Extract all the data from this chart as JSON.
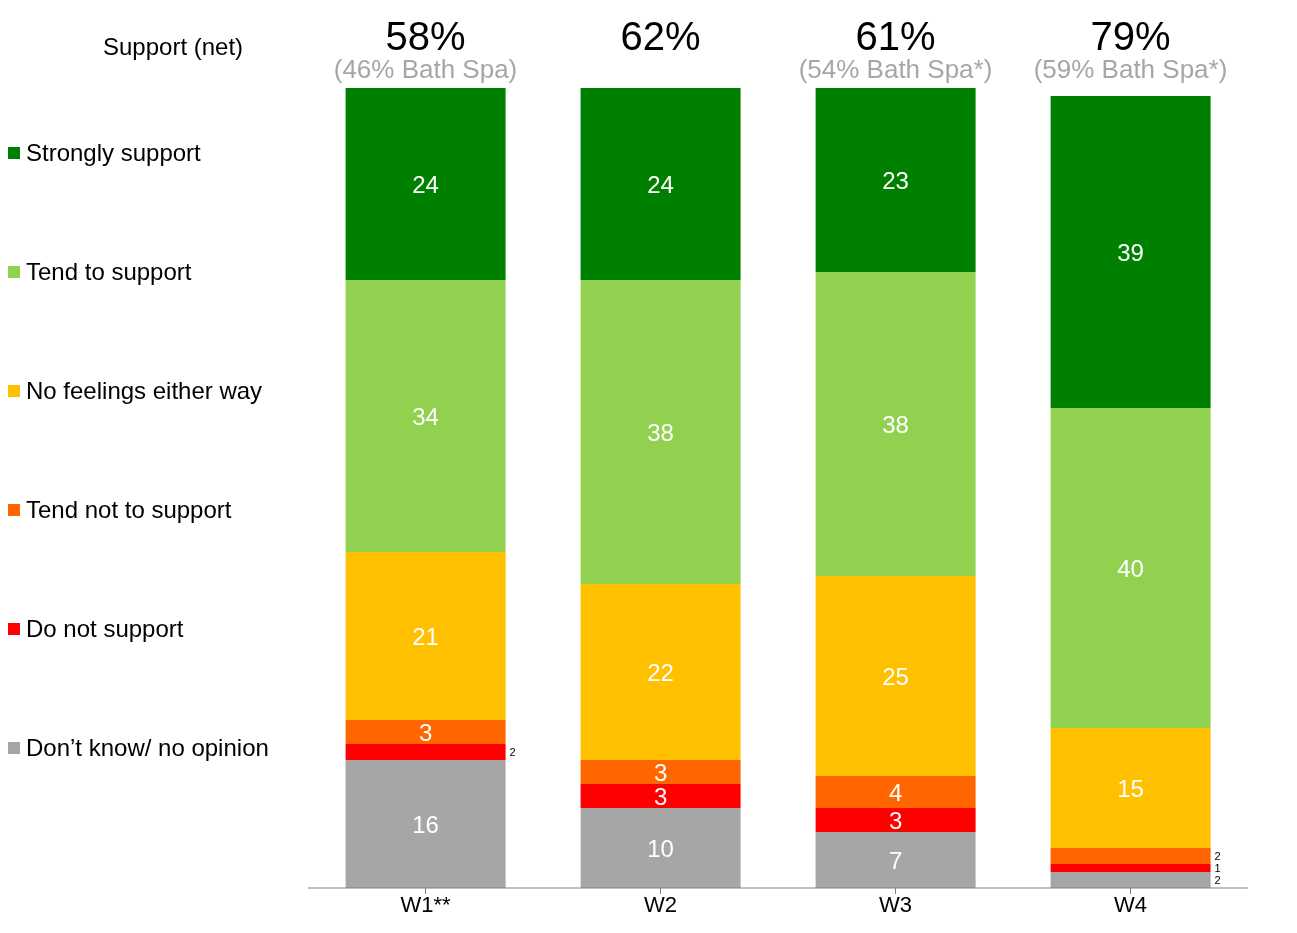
{
  "chart_data": {
    "type": "bar",
    "stacked": true,
    "data_labels": true,
    "legend": "left",
    "categories": [
      "W1**",
      "W2",
      "W3",
      "W4"
    ],
    "series": [
      {
        "name": "Don’t know/ no opinion",
        "color": "#a6a6a6",
        "values": [
          16,
          10,
          7,
          2
        ]
      },
      {
        "name": "Do not support",
        "color": "#ff0000",
        "values": [
          2,
          3,
          3,
          1
        ]
      },
      {
        "name": "Tend not to support",
        "color": "#ff6600",
        "values": [
          3,
          3,
          4,
          2
        ]
      },
      {
        "name": "No feelings either way",
        "color": "#ffc000",
        "values": [
          21,
          22,
          25,
          15
        ]
      },
      {
        "name": "Tend to support",
        "color": "#92d050",
        "values": [
          34,
          38,
          38,
          40
        ]
      },
      {
        "name": "Strongly support",
        "color": "#008000",
        "values": [
          24,
          24,
          23,
          39
        ]
      }
    ],
    "annotations": [
      "Support (net)",
      "58%\n(46% Bath Spa)",
      "62%",
      "61%\n(54% Bath Spa*)",
      "79%\n(59% Bath Spa*)"
    ]
  }
}
